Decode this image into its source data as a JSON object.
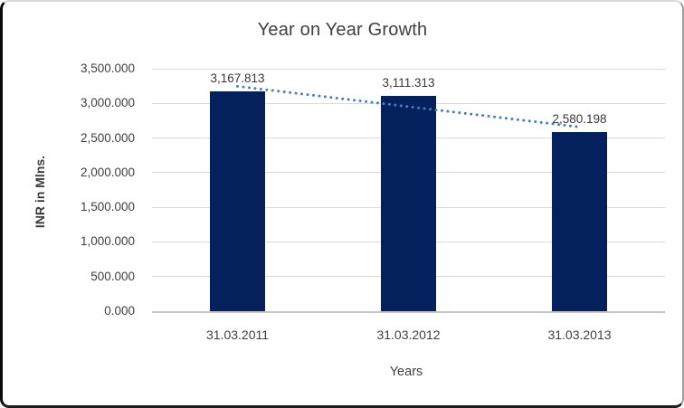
{
  "chart_data": {
    "type": "bar",
    "title": "Year on Year Growth",
    "ylabel": "INR in Mlns.",
    "xlabel": "Years",
    "categories": [
      "31.03.2011",
      "31.03.2012",
      "31.03.2013"
    ],
    "values": [
      3167.813,
      3111.313,
      2580.198
    ],
    "data_labels": [
      "3,167.813",
      "3,111.313",
      "2,580.198"
    ],
    "ylim": [
      0,
      3500
    ],
    "ytick_step": 500,
    "ytick_labels": [
      "0.000",
      "500.000",
      "1,000.000",
      "1,500.000",
      "2,000.000",
      "2,500.000",
      "3,000.000",
      "3,500.000"
    ],
    "grid": true,
    "legend": "none",
    "trendline": {
      "type": "linear",
      "style": "dotted"
    },
    "colors": {
      "bar": "#04215E",
      "trendline": "#4A7EBB",
      "gridline": "#D9D9D9",
      "axis_line": "#C6C6C6",
      "title_text": "#404040",
      "tick_text": "#3F3F3F",
      "data_label_text": "#383838"
    }
  }
}
